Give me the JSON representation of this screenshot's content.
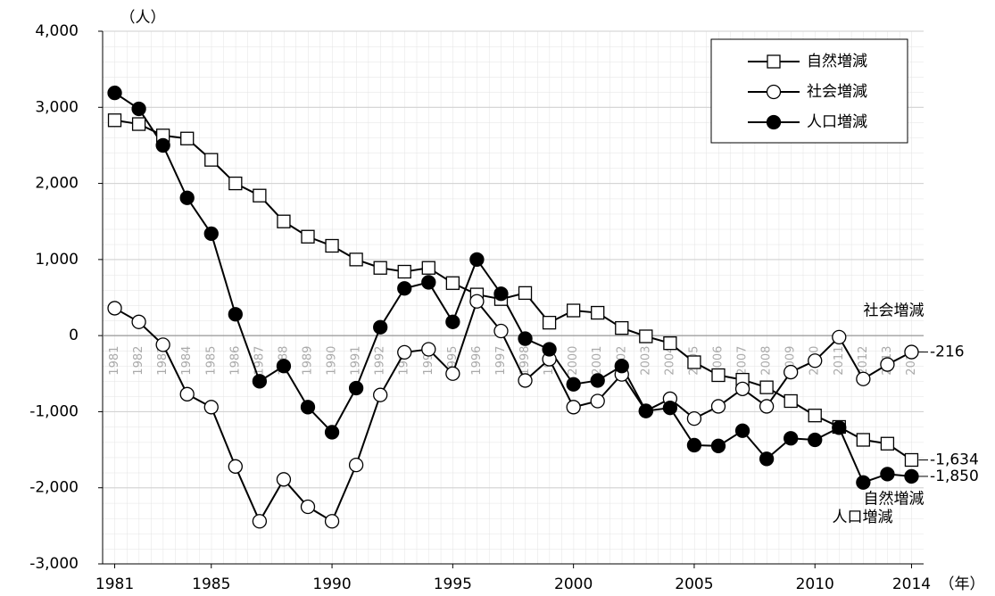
{
  "chart_data": {
    "type": "line",
    "y_unit_label": "（人）",
    "x_unit_label": "（年）",
    "x": [
      1981,
      1982,
      1983,
      1984,
      1985,
      1986,
      1987,
      1988,
      1989,
      1990,
      1991,
      1992,
      1993,
      1994,
      1995,
      1996,
      1997,
      1998,
      1999,
      2000,
      2001,
      2002,
      2003,
      2004,
      2005,
      2006,
      2007,
      2008,
      2009,
      2010,
      2011,
      2012,
      2013,
      2014
    ],
    "xlim": [
      1980.5,
      2014.5
    ],
    "xticks": [
      1981,
      1985,
      1990,
      1995,
      2000,
      2005,
      2010,
      2014
    ],
    "ylim": [
      -3000,
      4000
    ],
    "yticks": [
      {
        "value": -3000,
        "label": "-3,000"
      },
      {
        "value": -2000,
        "label": "-2,000"
      },
      {
        "value": -1000,
        "label": "-1,000"
      },
      0,
      {
        "value": 1000,
        "label": "1,000"
      },
      {
        "value": 2000,
        "label": "2,000"
      },
      {
        "value": 3000,
        "label": "3,000"
      },
      {
        "value": 4000,
        "label": "4,000"
      }
    ],
    "grid": true,
    "legend": "upper right",
    "series": [
      {
        "name": "自然増減",
        "color": "#000000",
        "marker": "square",
        "values": [
          2830,
          2780,
          2630,
          2590,
          2310,
          2000,
          1840,
          1500,
          1300,
          1180,
          1000,
          890,
          840,
          890,
          690,
          540,
          480,
          560,
          170,
          330,
          300,
          100,
          -10,
          -100,
          -350,
          -520,
          -580,
          -680,
          -860,
          -1050,
          -1200,
          -1370,
          -1420,
          -1634
        ],
        "value_labels": [
          null,
          null,
          null,
          null,
          null,
          null,
          null,
          null,
          null,
          null,
          null,
          null,
          null,
          null,
          null,
          null,
          null,
          null,
          null,
          null,
          null,
          null,
          null,
          null,
          null,
          null,
          null,
          null,
          null,
          null,
          null,
          null,
          null,
          "-1,634"
        ]
      },
      {
        "name": "社会増減",
        "color": "#000000",
        "marker": "circle-open",
        "values": [
          360,
          180,
          -120,
          -770,
          -940,
          -1720,
          -2440,
          -1890,
          -2250,
          -2440,
          -1700,
          -780,
          -220,
          -180,
          -500,
          450,
          60,
          -590,
          -310,
          -940,
          -860,
          -510,
          -990,
          -830,
          -1090,
          -930,
          -700,
          -930,
          -480,
          -330,
          -20,
          -570,
          -380,
          -216
        ],
        "value_labels": [
          null,
          null,
          null,
          null,
          null,
          null,
          null,
          null,
          null,
          null,
          null,
          null,
          null,
          null,
          null,
          null,
          null,
          null,
          null,
          null,
          null,
          null,
          null,
          null,
          null,
          null,
          null,
          null,
          null,
          null,
          null,
          null,
          null,
          "-216"
        ]
      },
      {
        "name": "人口増減",
        "color": "#000000",
        "marker": "circle-filled",
        "values": [
          3190,
          2980,
          2500,
          1810,
          1340,
          280,
          -600,
          -400,
          -940,
          -1270,
          -690,
          110,
          620,
          700,
          180,
          1000,
          550,
          -40,
          -180,
          -640,
          -590,
          -400,
          -990,
          -950,
          -1440,
          -1450,
          -1250,
          -1620,
          -1350,
          -1370,
          -1210,
          -1930,
          -1820,
          -1850
        ],
        "value_labels": [
          null,
          null,
          null,
          null,
          null,
          null,
          null,
          null,
          null,
          null,
          null,
          null,
          null,
          null,
          null,
          null,
          null,
          null,
          null,
          null,
          null,
          null,
          null,
          null,
          null,
          null,
          null,
          null,
          null,
          null,
          null,
          null,
          null,
          "-1,850"
        ]
      }
    ]
  }
}
